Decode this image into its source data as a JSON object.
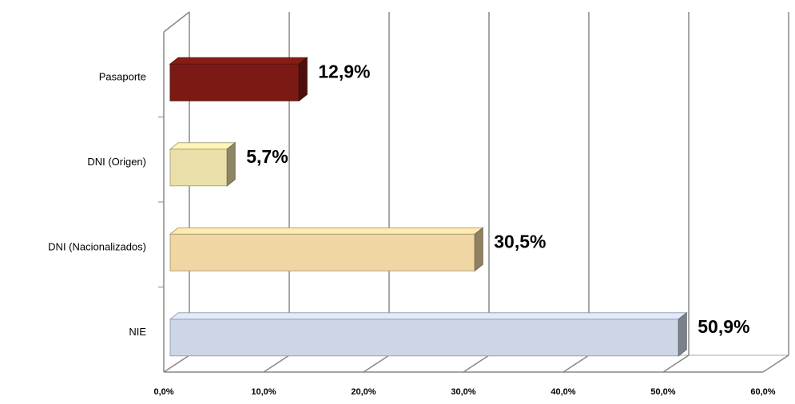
{
  "chart_data": {
    "type": "bar3d",
    "categories": [
      "Pasaporte",
      "DNI (Origen)",
      "DNI (Nacionalizados)",
      "NIE"
    ],
    "values": [
      12.9,
      5.7,
      30.5,
      50.9
    ],
    "value_labels": [
      "12,9%",
      "5,7%",
      "30,5%",
      "50,9%"
    ],
    "colors": [
      "#7b1a15",
      "#e9dfa8",
      "#efd6a2",
      "#cdd6e6"
    ],
    "xlim": [
      0,
      60
    ],
    "xticks": [
      {
        "value": 0,
        "label": "0,0%"
      },
      {
        "value": 10,
        "label": "10,0%"
      },
      {
        "value": 20,
        "label": "20,0%"
      },
      {
        "value": 30,
        "label": "30,0%"
      },
      {
        "value": 40,
        "label": "40,0%"
      },
      {
        "value": 50,
        "label": "50,0%"
      },
      {
        "value": 60,
        "label": "60,0%"
      }
    ],
    "grid": true
  }
}
